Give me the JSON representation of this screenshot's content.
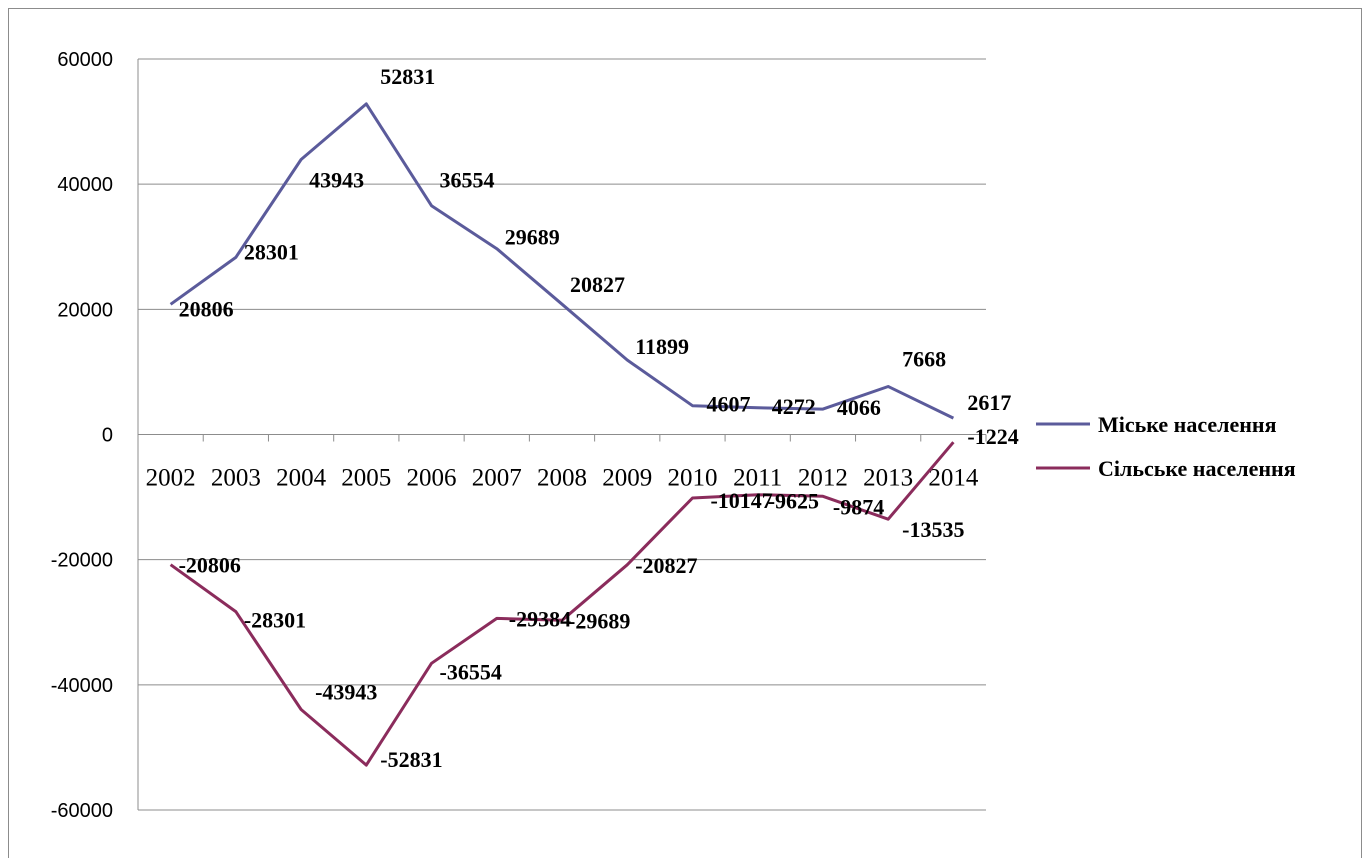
{
  "chart_data": {
    "type": "line",
    "title": "",
    "xlabel": "",
    "ylabel": "",
    "x": [
      "2002",
      "2003",
      "2004",
      "2005",
      "2006",
      "2007",
      "2008",
      "2009",
      "2010",
      "2011",
      "2012",
      "2013",
      "2014"
    ],
    "ylim": [
      -60000,
      60000
    ],
    "yticks": [
      "60000",
      "40000",
      "20000",
      "0",
      "-20000",
      "-40000",
      "-60000"
    ],
    "grid": true,
    "legend": "right",
    "series": [
      {
        "name": "Міське населення",
        "color": "#5b5b9b",
        "values": [
          20806,
          28301,
          43943,
          52831,
          36554,
          29689,
          20827,
          11899,
          4607,
          4272,
          4066,
          7668,
          2617
        ],
        "labels": [
          "20806",
          "28301",
          "43943",
          "52831",
          "36554",
          "29689",
          "20827",
          "11899",
          "4607",
          "4272",
          "4066",
          "7668",
          "2617"
        ]
      },
      {
        "name": "Сільське населення",
        "color": "#8b2c5c",
        "values": [
          -20806,
          -28301,
          -43943,
          -52831,
          -36554,
          -29384,
          -29689,
          -20827,
          -10147,
          -9625,
          -9874,
          -13535,
          -1224
        ],
        "labels": [
          "-20806",
          "-28301",
          "-43943",
          "-52831",
          "-36554",
          "-29384",
          "-29689",
          "-20827",
          "-10147",
          "-9625",
          "-9874",
          "-13535",
          "-1224"
        ]
      }
    ]
  }
}
